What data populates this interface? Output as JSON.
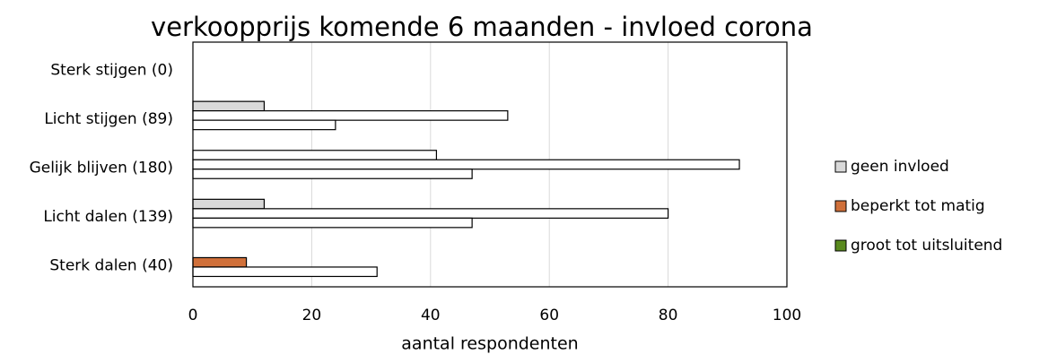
{
  "chart_data": {
    "type": "hbar",
    "title": "verkoopprijs komende 6 maanden - invloed corona",
    "x_label": "aantal respondenten",
    "categories": [
      "Sterk stijgen (0)",
      "Licht stijgen (89)",
      "Gelijk blijven (180)",
      "Licht dalen (139)",
      "Sterk dalen (40)"
    ],
    "series": [
      {
        "name": "geen invloed",
        "color": "#d9d9d9",
        "bar_colors": [
          "#d9d9d9",
          "#d9d9d9",
          "#ffffff",
          "#d9d9d9",
          "#ffffff"
        ],
        "values": [
          0,
          12,
          41,
          12,
          0
        ]
      },
      {
        "name": "beperkt tot matig",
        "color": "#d0703a",
        "bar_colors": [
          "#ffffff",
          "#ffffff",
          "#ffffff",
          "#ffffff",
          "#d0703a"
        ],
        "values": [
          0,
          53,
          92,
          80,
          9
        ]
      },
      {
        "name": "groot tot uitsluitend",
        "color": "#5a8a1e",
        "bar_colors": [
          "#ffffff",
          "#ffffff",
          "#ffffff",
          "#ffffff",
          "#ffffff"
        ],
        "values": [
          0,
          24,
          47,
          47,
          31
        ]
      }
    ],
    "xlim": [
      0,
      100
    ],
    "xticks": [
      0,
      20,
      40,
      60,
      80,
      100
    ],
    "grid": true,
    "legend": "right"
  }
}
